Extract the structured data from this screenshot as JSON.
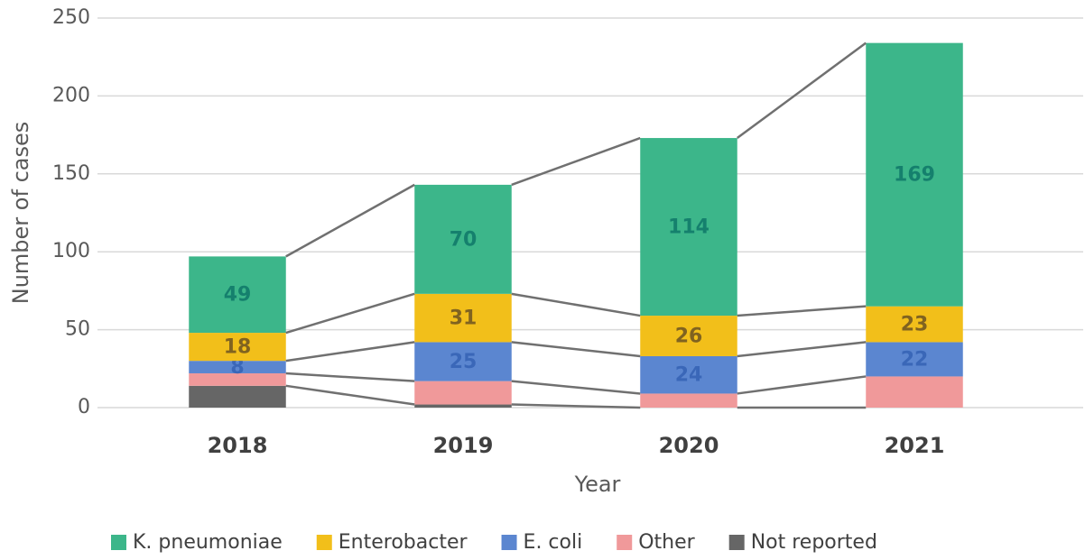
{
  "chart_data": {
    "type": "stacked_bar",
    "x_label": "Year",
    "y_label": "Number of cases",
    "categories": [
      "2018",
      "2019",
      "2020",
      "2021"
    ],
    "series": [
      {
        "name": "Not reported",
        "color": "#666666",
        "values": [
          14,
          2,
          0,
          0
        ],
        "show_labels": false
      },
      {
        "name": "Other",
        "color": "#f0999a",
        "values": [
          8,
          15,
          9,
          20
        ],
        "show_labels": false
      },
      {
        "name": "E. coli",
        "color": "#5b86d0",
        "label_color": "#3a67b8",
        "values": [
          8,
          25,
          24,
          22
        ],
        "show_labels": true
      },
      {
        "name": "Enterobacter",
        "color": "#f2bf1a",
        "label_color": "#806320",
        "values": [
          18,
          31,
          26,
          23
        ],
        "show_labels": true
      },
      {
        "name": "K. pneumoniae",
        "color": "#3cb68a",
        "label_color": "#15806d",
        "values": [
          49,
          70,
          114,
          169
        ],
        "show_labels": true
      }
    ],
    "legend_order": [
      4,
      3,
      2,
      1,
      0
    ],
    "ylim": [
      0,
      250
    ],
    "yticks": [
      0,
      50,
      100,
      150,
      200,
      250
    ],
    "grid": true,
    "connector_lines": true,
    "legend": "bottom"
  }
}
